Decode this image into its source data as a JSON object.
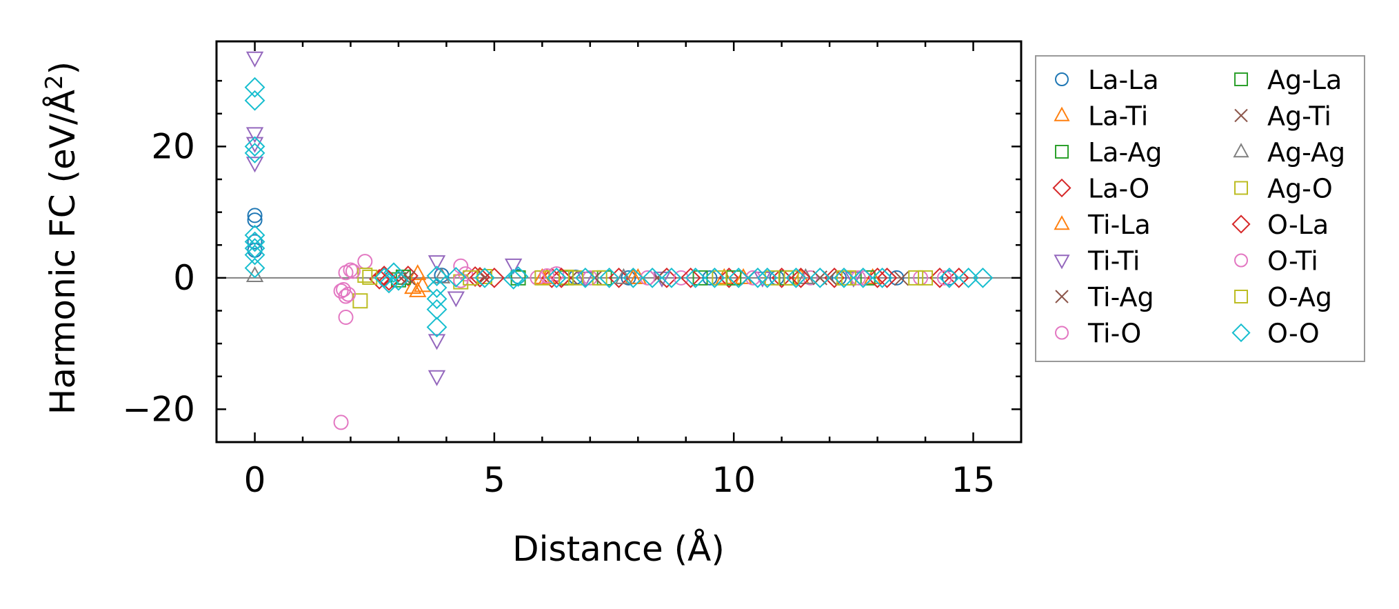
{
  "chart_data": {
    "type": "scatter",
    "title": "",
    "xlabel": "Distance (Å)",
    "ylabel_main": "Harmonic FC (eV/Å",
    "ylabel_sup": "2",
    "ylabel_close": ")",
    "xlim": [
      -0.8,
      16.0
    ],
    "ylim": [
      -25,
      36
    ],
    "xticks": [
      0,
      5,
      10,
      15
    ],
    "xtick_labels": [
      "0",
      "5",
      "10",
      "15"
    ],
    "yticks": [
      -20,
      0,
      20
    ],
    "ytick_labels": [
      "−20",
      "0",
      "20"
    ],
    "zero_line": 0,
    "legend_position": "outside-right",
    "series": [
      {
        "name": "La-La",
        "marker": "circle",
        "color": "#1f77b4",
        "points": [
          [
            0,
            9.5
          ],
          [
            0,
            8.8
          ],
          [
            0,
            5.5
          ],
          [
            0,
            4.2
          ],
          [
            3.9,
            0.4
          ],
          [
            5.5,
            0.2
          ],
          [
            6.7,
            0.1
          ],
          [
            7.8,
            0.0
          ],
          [
            9.5,
            0.0
          ],
          [
            10.9,
            0.0
          ],
          [
            12.2,
            0.0
          ],
          [
            13.4,
            0.0
          ],
          [
            14.5,
            0.0
          ]
        ]
      },
      {
        "name": "La-Ti",
        "marker": "triangle-up",
        "color": "#ff7f0e",
        "points": [
          [
            3.4,
            -2.0
          ],
          [
            3.4,
            0.6
          ],
          [
            3.3,
            -1.5
          ],
          [
            6.1,
            0.0
          ],
          [
            7.9,
            0.0
          ],
          [
            9.8,
            0.0
          ],
          [
            11.4,
            0.0
          ],
          [
            12.9,
            0.0
          ]
        ]
      },
      {
        "name": "La-Ag",
        "marker": "square",
        "color": "#2ca02c",
        "points": [
          [
            3.0,
            -0.3
          ],
          [
            5.5,
            0.0
          ],
          [
            7.3,
            0.0
          ],
          [
            9.3,
            0.0
          ],
          [
            11.1,
            0.0
          ],
          [
            12.8,
            0.0
          ]
        ]
      },
      {
        "name": "La-O",
        "marker": "diamond",
        "color": "#d62728",
        "points": [
          [
            2.6,
            -0.2
          ],
          [
            2.8,
            -0.4
          ],
          [
            3.2,
            0.3
          ],
          [
            4.6,
            0.2
          ],
          [
            5.0,
            0.0
          ],
          [
            6.2,
            0.0
          ],
          [
            7.6,
            0.0
          ],
          [
            8.6,
            0.0
          ],
          [
            9.9,
            0.0
          ],
          [
            11.0,
            0.0
          ],
          [
            12.1,
            0.0
          ],
          [
            13.2,
            0.0
          ],
          [
            14.3,
            0.0
          ]
        ]
      },
      {
        "name": "Ti-La",
        "marker": "triangle-up",
        "color": "#ff7f0e",
        "points": [
          [
            3.5,
            -1.2
          ],
          [
            6.0,
            0.0
          ],
          [
            8.0,
            0.0
          ],
          [
            10.2,
            0.0
          ]
        ]
      },
      {
        "name": "Ti-Ti",
        "marker": "triangle-down",
        "color": "#9467bd",
        "points": [
          [
            0,
            33.5
          ],
          [
            0,
            22.0
          ],
          [
            0,
            20.5
          ],
          [
            0,
            17.5
          ],
          [
            3.8,
            2.5
          ],
          [
            3.8,
            -9.5
          ],
          [
            3.8,
            -15.0
          ],
          [
            4.2,
            -3.0
          ],
          [
            5.4,
            2.0
          ],
          [
            6.9,
            0.0
          ],
          [
            8.5,
            0.0
          ],
          [
            10.6,
            0.0
          ],
          [
            12.5,
            0.0
          ]
        ]
      },
      {
        "name": "Ti-Ag",
        "marker": "x",
        "color": "#8c564b",
        "points": [
          [
            3.1,
            0.2
          ],
          [
            4.8,
            0.0
          ],
          [
            6.6,
            0.0
          ],
          [
            8.4,
            0.0
          ],
          [
            10.3,
            0.0
          ],
          [
            12.0,
            0.0
          ],
          [
            13.5,
            -0.1
          ]
        ]
      },
      {
        "name": "Ti-O",
        "marker": "circle",
        "color": "#e377c2",
        "points": [
          [
            1.8,
            -22.0
          ],
          [
            1.9,
            -6.0
          ],
          [
            1.8,
            -2.0
          ],
          [
            1.9,
            -2.8
          ],
          [
            2.0,
            1.2
          ],
          [
            1.9,
            0.8
          ],
          [
            2.3,
            2.5
          ],
          [
            4.3,
            1.8
          ],
          [
            4.4,
            0.6
          ],
          [
            5.9,
            0.0
          ],
          [
            6.3,
            0.6
          ],
          [
            7.0,
            0.0
          ],
          [
            8.9,
            0.0
          ],
          [
            11.6,
            0.0
          ],
          [
            12.6,
            0.0
          ],
          [
            13.9,
            0.0
          ]
        ]
      },
      {
        "name": "Ag-La",
        "marker": "square",
        "color": "#2ca02c",
        "points": [
          [
            3.1,
            0.1
          ],
          [
            6.5,
            0.0
          ],
          [
            10.0,
            0.0
          ]
        ]
      },
      {
        "name": "Ag-Ti",
        "marker": "x",
        "color": "#8c564b",
        "points": [
          [
            3.2,
            0.0
          ],
          [
            7.1,
            0.0
          ],
          [
            11.8,
            0.0
          ]
        ]
      },
      {
        "name": "Ag-Ag",
        "marker": "triangle-up",
        "color": "#7f7f7f",
        "points": [
          [
            0,
            0.3
          ],
          [
            3.9,
            0.1
          ],
          [
            7.7,
            0.0
          ],
          [
            11.5,
            0.0
          ]
        ]
      },
      {
        "name": "Ag-O",
        "marker": "square",
        "color": "#bcbd22",
        "points": [
          [
            2.2,
            -3.5
          ],
          [
            2.3,
            0.4
          ],
          [
            4.3,
            -0.6
          ],
          [
            4.8,
            0.2
          ],
          [
            6.0,
            0.0
          ],
          [
            6.5,
            0.1
          ],
          [
            7.2,
            0.0
          ],
          [
            9.7,
            0.0
          ],
          [
            11.2,
            0.0
          ],
          [
            12.4,
            0.0
          ],
          [
            14.0,
            0.0
          ]
        ]
      },
      {
        "name": "O-La",
        "marker": "diamond",
        "color": "#d62728",
        "points": [
          [
            2.7,
            0.3
          ],
          [
            4.7,
            0.1
          ],
          [
            6.4,
            0.0
          ],
          [
            9.1,
            0.0
          ],
          [
            11.4,
            0.0
          ],
          [
            13.0,
            0.0
          ],
          [
            14.7,
            0.0
          ]
        ]
      },
      {
        "name": "O-Ti",
        "marker": "circle",
        "color": "#e377c2",
        "points": [
          [
            1.85,
            -1.8
          ],
          [
            1.95,
            -2.5
          ],
          [
            2.05,
            1.0
          ],
          [
            4.3,
            -0.4
          ],
          [
            6.1,
            0.3
          ],
          [
            8.2,
            0.0
          ],
          [
            10.4,
            0.0
          ],
          [
            12.7,
            0.0
          ],
          [
            14.4,
            0.0
          ]
        ]
      },
      {
        "name": "O-Ag",
        "marker": "square",
        "color": "#bcbd22",
        "points": [
          [
            2.4,
            0.1
          ],
          [
            4.5,
            0.0
          ],
          [
            6.7,
            0.0
          ],
          [
            10.8,
            0.0
          ],
          [
            12.3,
            0.0
          ],
          [
            13.8,
            0.0
          ]
        ]
      },
      {
        "name": "O-O",
        "marker": "diamond",
        "color": "#17becf",
        "points": [
          [
            0,
            29.0
          ],
          [
            0,
            27.0
          ],
          [
            0,
            20.0
          ],
          [
            0,
            19.0
          ],
          [
            0,
            6.5
          ],
          [
            0,
            5.5
          ],
          [
            0,
            4.5
          ],
          [
            0,
            3.5
          ],
          [
            0,
            1.5
          ],
          [
            2.7,
            0.0
          ],
          [
            2.8,
            -0.8
          ],
          [
            2.9,
            0.8
          ],
          [
            3.0,
            -0.4
          ],
          [
            3.8,
            0.3
          ],
          [
            3.8,
            -1.5
          ],
          [
            3.8,
            -3.2
          ],
          [
            3.8,
            -4.8
          ],
          [
            3.8,
            -7.5
          ],
          [
            4.2,
            0.1
          ],
          [
            4.8,
            0.0
          ],
          [
            5.4,
            -0.2
          ],
          [
            5.5,
            0.2
          ],
          [
            6.3,
            0.0
          ],
          [
            6.9,
            0.0
          ],
          [
            7.4,
            0.0
          ],
          [
            7.9,
            0.0
          ],
          [
            8.3,
            0.0
          ],
          [
            8.7,
            0.0
          ],
          [
            9.2,
            0.0
          ],
          [
            9.6,
            0.0
          ],
          [
            10.1,
            0.0
          ],
          [
            10.5,
            0.0
          ],
          [
            10.7,
            0.0
          ],
          [
            11.3,
            0.0
          ],
          [
            11.8,
            0.0
          ],
          [
            12.3,
            0.0
          ],
          [
            12.7,
            0.0
          ],
          [
            13.1,
            0.0
          ],
          [
            14.5,
            0.0
          ],
          [
            14.9,
            0.0
          ],
          [
            15.2,
            0.0
          ]
        ]
      }
    ]
  }
}
